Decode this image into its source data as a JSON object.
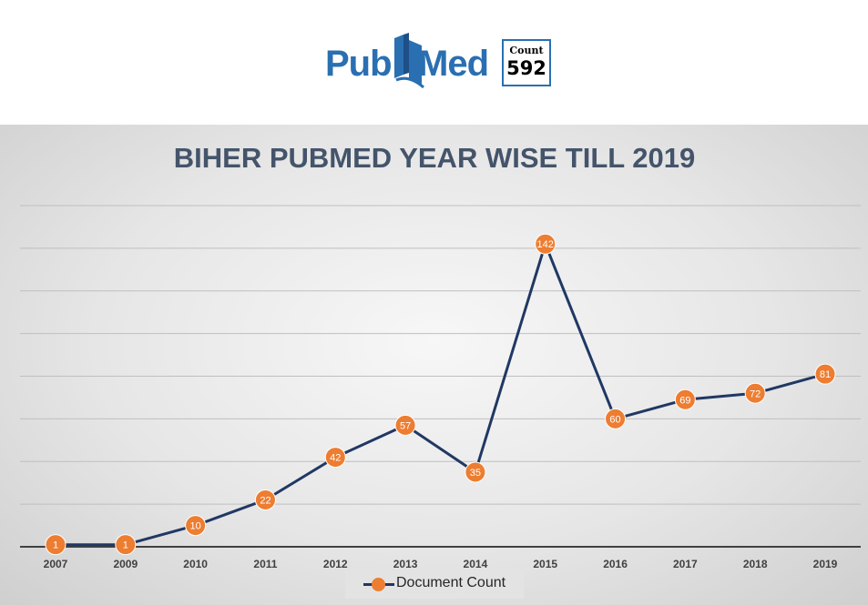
{
  "logo": {
    "pub_text": "Pub",
    "med_text": "Med",
    "count_label": "Count",
    "count_value": "592"
  },
  "colors": {
    "logo_blue": "#2a6fb2",
    "line": "#203864",
    "marker": "#ed7d31",
    "title": "#44546a"
  },
  "chart_data": {
    "type": "line",
    "title": "BIHER PUBMED YEAR WISE TILL 2019",
    "xlabel": "",
    "ylabel": "",
    "categories": [
      "2007",
      "2009",
      "2010",
      "2011",
      "2012",
      "2013",
      "2014",
      "2015",
      "2016",
      "2017",
      "2018",
      "2019"
    ],
    "series": [
      {
        "name": "Document Count",
        "values": [
          1,
          1,
          10,
          22,
          42,
          57,
          35,
          142,
          60,
          69,
          72,
          81
        ]
      }
    ],
    "ylim": [
      0,
      160
    ],
    "grid": true,
    "y_tick_labels_shown": false,
    "data_labels": true,
    "legend_position": "bottom"
  }
}
